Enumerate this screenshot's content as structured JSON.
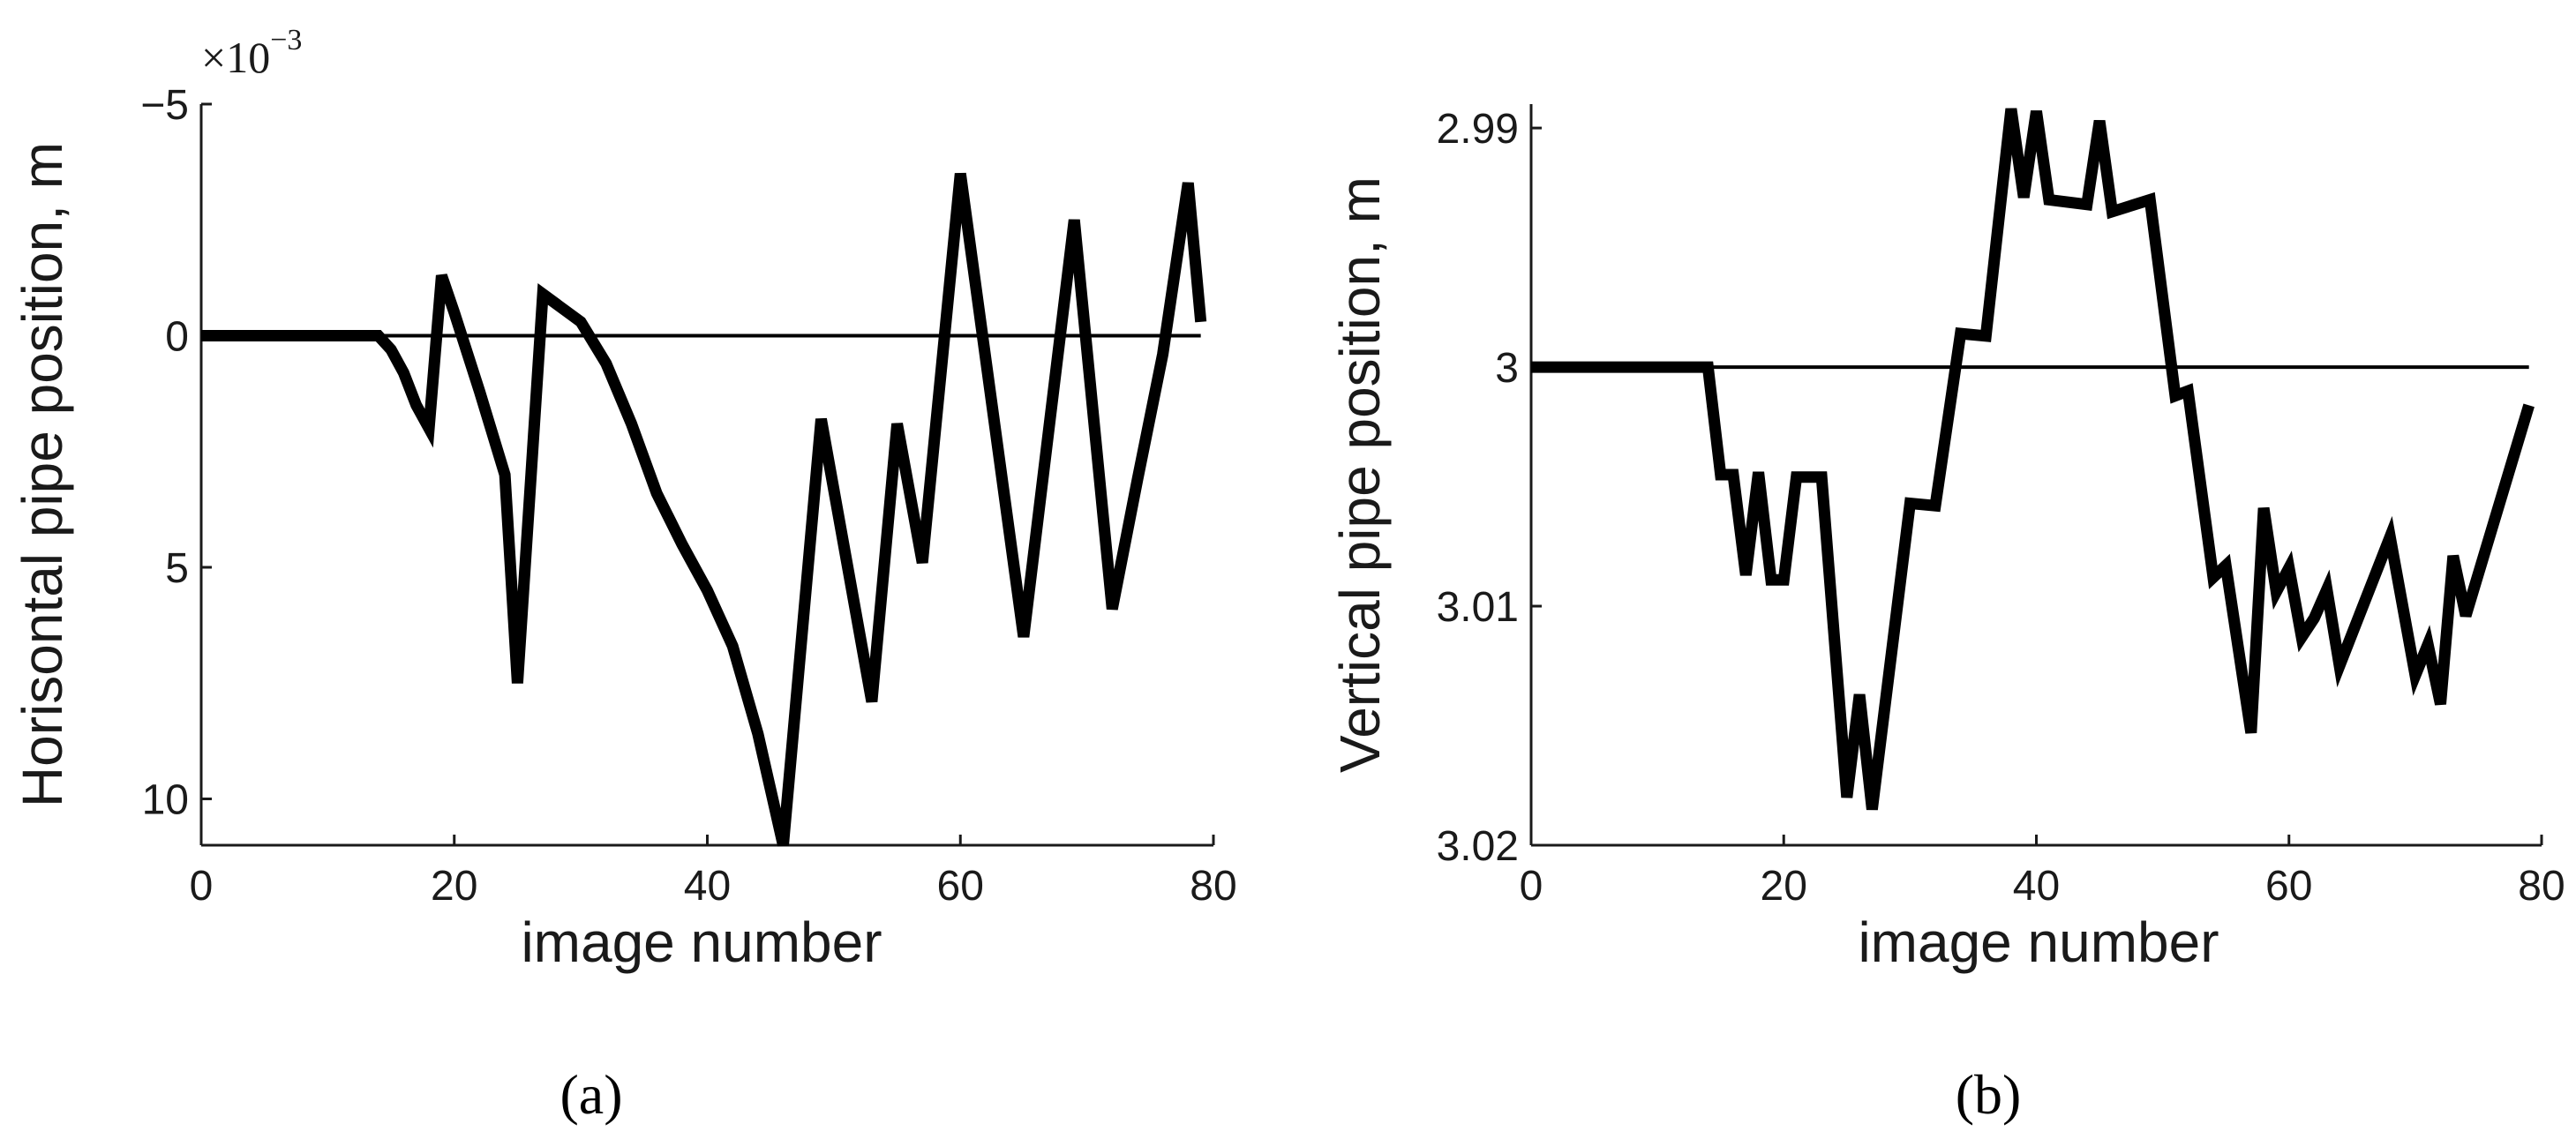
{
  "chart_data": [
    {
      "type": "line",
      "panel_label": "(a)",
      "xlabel": "image number",
      "ylabel": "Horisontal pipe position, m",
      "y_multiplier": "×10",
      "y_multiplier_exp": "−3",
      "y_reversed": true,
      "xlim": [
        0,
        80
      ],
      "ylim": [
        -5,
        11
      ],
      "xticks": [
        0,
        20,
        40,
        60,
        80
      ],
      "yticks": [
        -5,
        0,
        5,
        10
      ],
      "ytick_labels": [
        "−5",
        "0",
        "5",
        "10"
      ],
      "grid": false,
      "reference_line": 0,
      "series": [
        {
          "x": [
            0,
            14,
            15,
            16,
            17,
            18,
            19,
            20,
            22,
            24,
            25,
            27,
            30,
            32,
            34,
            36,
            38,
            40,
            42,
            44,
            46,
            49,
            53,
            55,
            57,
            60,
            65,
            69,
            72,
            74,
            76,
            78,
            79
          ],
          "values": [
            0,
            0,
            0.3,
            0.8,
            1.5,
            2.0,
            -1.3,
            -0.5,
            1.2,
            3.0,
            7.5,
            -0.9,
            -0.3,
            0.6,
            1.9,
            3.4,
            4.5,
            5.5,
            6.7,
            8.6,
            11.0,
            1.8,
            7.9,
            1.9,
            4.9,
            -3.5,
            6.5,
            -2.5,
            5.9,
            3.1,
            0.4,
            -3.3,
            -0.3
          ]
        }
      ]
    },
    {
      "type": "line",
      "panel_label": "(b)",
      "xlabel": "image number",
      "ylabel": "Vertical pipe position, m",
      "y_reversed": true,
      "xlim": [
        0,
        80
      ],
      "ylim": [
        2.989,
        3.02
      ],
      "xticks": [
        0,
        20,
        40,
        60,
        80
      ],
      "yticks": [
        2.99,
        3,
        3.01,
        3.02
      ],
      "ytick_labels": [
        "2.99",
        "3",
        "3.01",
        "3.02"
      ],
      "grid": false,
      "reference_line": 3.0,
      "series": [
        {
          "x": [
            0,
            14,
            15,
            16,
            17,
            18,
            19,
            20,
            21,
            23,
            25,
            26,
            27,
            30,
            32,
            34,
            36,
            38,
            39,
            40,
            41,
            44,
            45,
            46,
            49,
            51,
            52,
            54,
            55,
            56,
            57,
            58,
            59,
            60,
            61,
            62,
            63,
            64,
            68,
            70,
            71,
            72,
            73,
            74,
            79
          ],
          "values": [
            3.0,
            3.0,
            3.0045,
            3.0045,
            3.0087,
            3.0044,
            3.0089,
            3.0089,
            3.0046,
            3.0046,
            3.018,
            3.0137,
            3.0185,
            3.0057,
            3.0058,
            2.9986,
            2.9987,
            2.9892,
            2.9929,
            2.9893,
            2.993,
            2.9932,
            2.9897,
            2.9935,
            2.993,
            3.0012,
            3.001,
            3.0088,
            3.0083,
            3.0118,
            3.0153,
            3.0059,
            3.0094,
            3.0084,
            3.0113,
            3.0105,
            3.0093,
            3.0125,
            3.0071,
            3.0129,
            3.0116,
            3.0141,
            3.0079,
            3.0104,
            3.0016
          ]
        }
      ]
    }
  ]
}
